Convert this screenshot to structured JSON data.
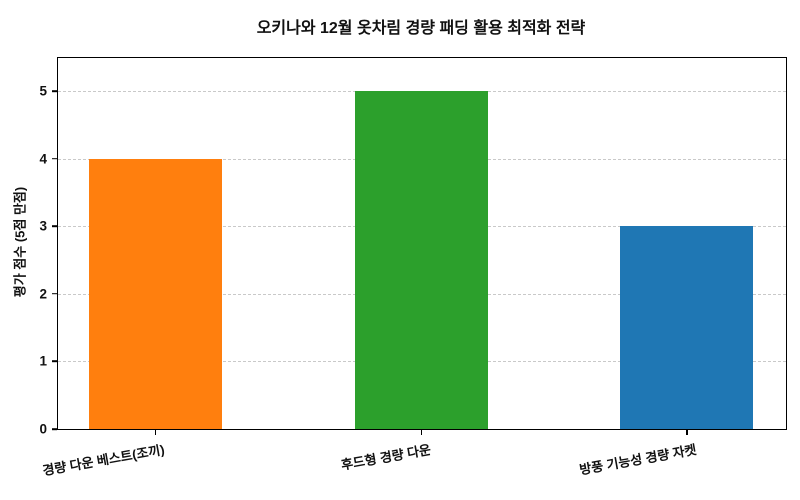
{
  "chart_data": {
    "type": "bar",
    "title": "오키나와 12월 옷차림 경량 패딩 활용 최적화 전략",
    "categories": [
      "경량 다운 베스트(조끼)",
      "후드형 경량 다운",
      "방풍 기능성 경량 자켓"
    ],
    "values": [
      4,
      5,
      3
    ],
    "bar_colors": [
      "#ff7f0e",
      "#2ca02c",
      "#1f77b4"
    ],
    "xlabel": "",
    "ylabel": "평가 점수 (5점 만점)",
    "ylim": [
      0,
      5.49
    ],
    "yticks": [
      0,
      1,
      2,
      3,
      4,
      5
    ],
    "grid": "horizontal-dashed",
    "grid_color": "#c9c9c9",
    "spine_color": "#000000",
    "background": "#ffffff",
    "legend": "none"
  }
}
